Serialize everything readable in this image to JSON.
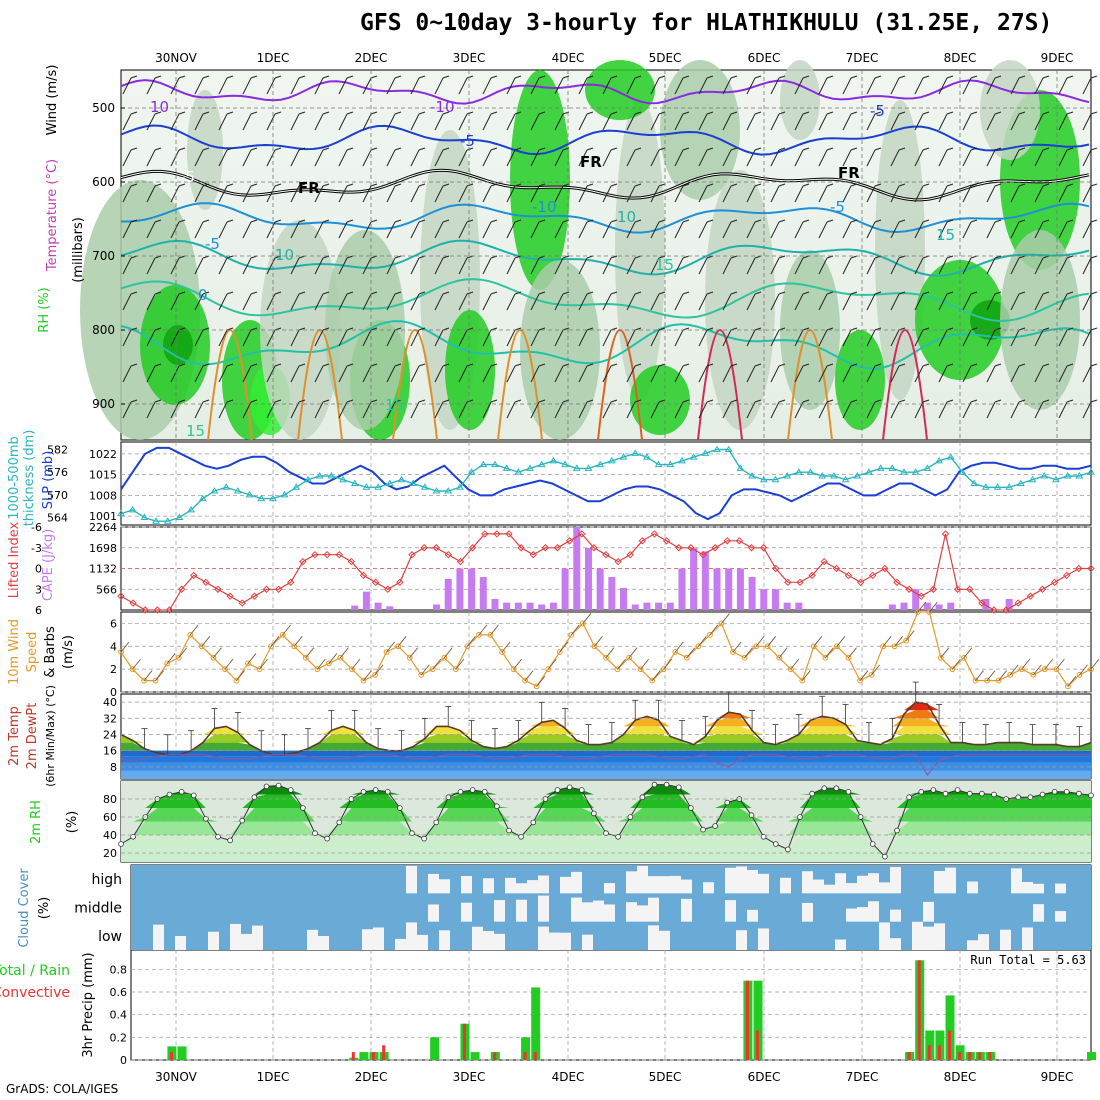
{
  "title": "GFS 0~10day 3-hourly for HLATHIKHULU (31.25E, 27S)",
  "footer": "GrADS: COLA/IGES",
  "date_labels": [
    "30NOV",
    "1DEC",
    "2DEC",
    "3DEC",
    "4DEC",
    "5DEC",
    "6DEC",
    "7DEC",
    "8DEC",
    "9DEC"
  ],
  "colors": {
    "rh_green": "#22cc22",
    "temp_purple": "#8a2be2",
    "slp_blue": "#1a3fd1",
    "thickness_cyan": "#2bb5c0",
    "lifted_red": "#e04040",
    "cape_violet": "#c77bf0",
    "wind_orange": "#e39a2d",
    "cloud_blue": "#6aaad6",
    "cloud_white": "#f4f4f4",
    "precip_green": "#22cc22",
    "precip_red": "#ee3333"
  },
  "panels": {
    "upper": {
      "ylabel_parts": [
        "Wind (m/s)",
        "Temperature (°C)",
        "RH (%)",
        "(millibars)"
      ],
      "y_ticks": [
        "500",
        "600",
        "700",
        "800",
        "900"
      ],
      "contour_labels": [
        "-10",
        "-5",
        "-5",
        "FR",
        "FR",
        "FR",
        "-5",
        "-5",
        "-10",
        "10",
        "10",
        "10",
        "15",
        "15",
        "15",
        "15",
        "0",
        "-5"
      ]
    },
    "slp": {
      "ylabel_left": "1000-500mb thickness (dm)",
      "ylabel_right": "SLP (mb)",
      "left_ticks": [
        "582",
        "576",
        "570",
        "564"
      ],
      "right_ticks": [
        "1022",
        "1015",
        "1008",
        "1001"
      ]
    },
    "cape": {
      "ylabel_left": "Lifted Index",
      "ylabel_right": "CAPE (J/kg)",
      "left_ticks": [
        "-6",
        "-3",
        "0",
        "3",
        "6"
      ],
      "right_ticks": [
        "2264",
        "1698",
        "1132",
        "566"
      ]
    },
    "wind": {
      "ylabel": "10m Wind Speed & Barbs (m/s)",
      "ylabel_parts": [
        "10m Wind",
        "Speed",
        "& Barbs",
        "(m/s)"
      ],
      "ticks": [
        "6",
        "4",
        "2",
        "0"
      ]
    },
    "temp": {
      "ylabel_parts": [
        "2m Temp",
        "2m DewPt",
        "(6hr Min/Max) (°C)"
      ],
      "ticks": [
        "40",
        "32",
        "24",
        "16",
        "8"
      ]
    },
    "rh": {
      "ylabel_parts": [
        "2m RH",
        "(%)"
      ],
      "ticks": [
        "80",
        "60",
        "40",
        "20"
      ]
    },
    "cloud": {
      "ylabel_parts": [
        "Cloud Cover",
        "(%)"
      ],
      "levels": [
        "high",
        "middle",
        "low"
      ]
    },
    "precip": {
      "ylabel_left_parts": [
        "Total / Rain",
        "Convective"
      ],
      "ylabel": "3hr Precip (mm)",
      "ticks": [
        "0.8",
        "0.6",
        "0.4",
        "0.2",
        "0"
      ],
      "run_total": "Run Total = 5.63"
    }
  },
  "chart_data": [
    {
      "type": "line",
      "title": "SLP (mb) and 1000-500mb thickness (dm)",
      "ylabel": "SLP (mb)",
      "ylim": [
        998,
        1026
      ],
      "series": [
        {
          "name": "SLP (mb)",
          "values": [
            1010,
            1016,
            1022,
            1024,
            1024,
            1022,
            1020,
            1018,
            1017,
            1018,
            1020,
            1021,
            1021,
            1019,
            1016,
            1014,
            1012,
            1012,
            1014,
            1016,
            1018,
            1016,
            1012,
            1010,
            1011,
            1014,
            1016,
            1018,
            1014,
            1010,
            1008,
            1008,
            1010,
            1011,
            1012,
            1013,
            1012,
            1010,
            1008,
            1006,
            1006,
            1008,
            1010,
            1011,
            1011,
            1010,
            1008,
            1006,
            1002,
            1000,
            1002,
            1008,
            1010,
            1010,
            1009,
            1008,
            1006,
            1008,
            1010,
            1012,
            1012,
            1010,
            1008,
            1008,
            1010,
            1012,
            1012,
            1010,
            1008,
            1010,
            1016,
            1018,
            1019,
            1019,
            1018,
            1017,
            1017,
            1018,
            1018,
            1017,
            1017,
            1018
          ]
        }
      ]
    },
    {
      "type": "line",
      "title": "1000-500mb thickness (dm)",
      "ylabel": "1000-500mb thickness (dm)",
      "ylim": [
        562,
        584
      ],
      "series": [
        {
          "name": "1000-500mb thickness (dm)",
          "values": [
            565,
            566,
            564,
            563,
            563,
            564,
            566,
            569,
            571,
            572,
            571,
            570,
            569,
            569,
            570,
            572,
            574,
            575,
            575,
            574,
            573,
            572,
            572,
            573,
            574,
            573,
            572,
            571,
            571,
            572,
            576,
            578,
            578,
            577,
            576,
            577,
            578,
            579,
            578,
            577,
            577,
            578,
            579,
            580,
            581,
            580,
            578,
            578,
            579,
            580,
            581,
            582,
            582,
            577,
            575,
            574,
            574,
            575,
            576,
            576,
            575,
            575,
            574,
            575,
            576,
            577,
            577,
            576,
            576,
            577,
            579,
            580,
            576,
            573,
            572,
            572,
            572,
            573,
            574,
            575,
            574,
            575,
            575,
            576
          ]
        }
      ]
    },
    {
      "type": "bar",
      "title": "CAPE (J/kg) and Lifted Index",
      "ylabel": "CAPE (J/kg)",
      "ylim": [
        0,
        2264
      ],
      "values_cape": [
        0,
        0,
        0,
        0,
        0,
        0,
        0,
        0,
        0,
        0,
        0,
        0,
        0,
        0,
        0,
        0,
        0,
        0,
        0,
        0,
        120,
        500,
        200,
        100,
        0,
        0,
        0,
        150,
        850,
        1132,
        1132,
        900,
        300,
        200,
        200,
        200,
        150,
        200,
        1132,
        2264,
        1698,
        1132,
        900,
        600,
        150,
        200,
        200,
        200,
        1132,
        1698,
        1600,
        1132,
        1132,
        1132,
        900,
        566,
        566,
        200,
        200,
        0,
        0,
        0,
        0,
        0,
        0,
        0,
        150,
        200,
        566,
        200,
        150,
        200,
        0,
        0,
        300,
        0,
        300,
        0,
        0,
        0,
        0,
        0,
        0,
        0
      ],
      "lifted_index": [
        4,
        5,
        6,
        6,
        6,
        3,
        1,
        2,
        3,
        4,
        5,
        4,
        3,
        3,
        2,
        -1,
        -2,
        -2,
        -2,
        -1,
        1,
        2,
        3,
        2,
        -2,
        -3,
        -3,
        -2,
        -1,
        -3,
        -5,
        -5,
        -5,
        -3,
        -2,
        -3,
        -3,
        -4,
        -5,
        -3,
        -2,
        -1,
        -2,
        -4,
        -5,
        -4,
        -3,
        -3,
        -2,
        -3,
        -4,
        -4,
        -3,
        -3,
        0,
        2,
        2,
        1,
        -1,
        0,
        1,
        2,
        1,
        0,
        2,
        3,
        4,
        3,
        -5,
        3,
        3,
        5,
        6,
        6,
        5,
        4,
        3,
        2,
        1,
        0,
        0
      ]
    },
    {
      "type": "line",
      "title": "10m Wind Speed (m/s)",
      "ylabel": "(m/s)",
      "ylim": [
        0,
        7
      ],
      "series": [
        {
          "name": "10m wind speed (m/s)",
          "values": [
            3.5,
            2,
            1,
            1,
            2.5,
            3,
            5,
            4,
            3,
            2,
            1,
            2.5,
            2,
            4,
            5,
            4,
            3,
            2,
            2.5,
            3,
            2,
            1,
            1.5,
            3.5,
            4,
            3,
            1.5,
            2,
            3,
            2,
            4,
            5,
            5,
            3.5,
            2,
            1,
            0.5,
            2,
            3.5,
            5,
            6,
            4,
            3,
            2,
            3,
            2,
            1,
            2,
            3.5,
            3,
            4,
            5,
            6,
            3.5,
            3,
            4,
            4,
            3,
            2,
            1,
            4,
            3,
            4,
            3,
            1,
            1.5,
            4,
            4,
            4.5,
            7,
            7,
            3,
            2,
            3,
            1,
            1,
            1,
            1.5,
            2,
            1.5,
            2,
            2,
            0.5,
            1.5,
            2
          ]
        }
      ]
    },
    {
      "type": "area",
      "title": "2m Temp / DewPt (°C)",
      "ylabel": "(°C)",
      "ylim": [
        2,
        44
      ],
      "series": [
        {
          "name": "2m Temp",
          "values": [
            24,
            21,
            17,
            15,
            14,
            14,
            16,
            20,
            27,
            28,
            25,
            19,
            16,
            14,
            14,
            15,
            17,
            20,
            26,
            28,
            26,
            20,
            17,
            16,
            16,
            18,
            22,
            28,
            28,
            26,
            21,
            18,
            17,
            18,
            21,
            26,
            30,
            31,
            27,
            21,
            19,
            19,
            20,
            24,
            31,
            33,
            31,
            23,
            21,
            19,
            23,
            31,
            35,
            34,
            26,
            20,
            19,
            21,
            24,
            31,
            33,
            32,
            29,
            21,
            20,
            19,
            22,
            34,
            40,
            39,
            29,
            20,
            20,
            19,
            19,
            20,
            20,
            20,
            19,
            19,
            19,
            18,
            18,
            20
          ]
        },
        {
          "name": "2m DewPt",
          "values": [
            12,
            11,
            12,
            13,
            14,
            14,
            14,
            14,
            13,
            12,
            12,
            12,
            13,
            14,
            14,
            14,
            13,
            12,
            12,
            12,
            13,
            14,
            14,
            14,
            13,
            12,
            12,
            13,
            14,
            14,
            14,
            13,
            12,
            12,
            13,
            14,
            14,
            14,
            13,
            12,
            12,
            13,
            14,
            14,
            14,
            14,
            13,
            12,
            12,
            13,
            14,
            10,
            8,
            12,
            14,
            14,
            14,
            13,
            12,
            12,
            13,
            14,
            14,
            14,
            13,
            12,
            12,
            14,
            14,
            4,
            11,
            13,
            14,
            14,
            14,
            14,
            14,
            14,
            14,
            14,
            14,
            14,
            14,
            14
          ]
        }
      ]
    },
    {
      "type": "area",
      "title": "2m RH (%)",
      "ylabel": "(%)",
      "ylim": [
        10,
        100
      ],
      "series": [
        {
          "name": "2m RH",
          "values": [
            30,
            38,
            60,
            80,
            85,
            88,
            84,
            58,
            38,
            34,
            56,
            82,
            94,
            95,
            90,
            70,
            42,
            36,
            54,
            80,
            88,
            90,
            88,
            70,
            42,
            36,
            54,
            82,
            88,
            90,
            88,
            72,
            45,
            38,
            54,
            80,
            90,
            93,
            90,
            64,
            42,
            38,
            60,
            82,
            96,
            96,
            93,
            70,
            46,
            50,
            76,
            80,
            62,
            38,
            30,
            24,
            60,
            86,
            92,
            92,
            88,
            60,
            30,
            16,
            45,
            82,
            88,
            90,
            86,
            90,
            86,
            86,
            85,
            80,
            82,
            82,
            85,
            88,
            88,
            86,
            84
          ]
        }
      ]
    },
    {
      "type": "bar",
      "title": "3hr Precip (mm)",
      "ylabel": "3hr Precip (mm)",
      "ylim": [
        0,
        0.9
      ],
      "run_total": 5.63,
      "series": [
        {
          "name": "Total / Rain",
          "values": [
            0,
            0,
            0,
            0,
            0.12,
            0.12,
            0,
            0,
            0,
            0,
            0,
            0,
            0,
            0,
            0,
            0,
            0,
            0,
            0,
            0,
            0,
            0,
            0.02,
            0.07,
            0.07,
            0.07,
            0,
            0,
            0,
            0,
            0.2,
            0,
            0,
            0.32,
            0.07,
            0,
            0.07,
            0,
            0,
            0.2,
            0.64,
            0,
            0,
            0,
            0,
            0,
            0,
            0,
            0,
            0,
            0,
            0,
            0,
            0,
            0,
            0,
            0,
            0,
            0,
            0,
            0,
            0.7,
            0.7,
            0,
            0,
            0,
            0,
            0,
            0,
            0,
            0,
            0,
            0,
            0,
            0,
            0,
            0,
            0.07,
            0.88,
            0.26,
            0.26,
            0.57,
            0.13,
            0.07,
            0.07,
            0.07,
            0,
            0,
            0,
            0,
            0,
            0,
            0,
            0,
            0,
            0.07
          ]
        },
        {
          "name": "Convective",
          "values": [
            0,
            0,
            0,
            0,
            0.07,
            0,
            0,
            0,
            0,
            0,
            0,
            0,
            0,
            0,
            0,
            0,
            0,
            0,
            0,
            0,
            0,
            0,
            0.07,
            0,
            0.07,
            0.13,
            0,
            0,
            0,
            0,
            0,
            0,
            0,
            0.32,
            0,
            0,
            0.07,
            0,
            0,
            0.07,
            0.07,
            0,
            0,
            0,
            0,
            0,
            0,
            0,
            0,
            0,
            0,
            0,
            0,
            0,
            0,
            0,
            0,
            0,
            0,
            0,
            0,
            0.7,
            0.26,
            0,
            0,
            0,
            0,
            0,
            0,
            0,
            0,
            0,
            0,
            0,
            0,
            0,
            0,
            0.07,
            0.88,
            0.13,
            0.13,
            0.26,
            0.07,
            0.07,
            0.07,
            0.07,
            0,
            0,
            0,
            0,
            0,
            0,
            0,
            0,
            0,
            0
          ]
        }
      ]
    }
  ]
}
